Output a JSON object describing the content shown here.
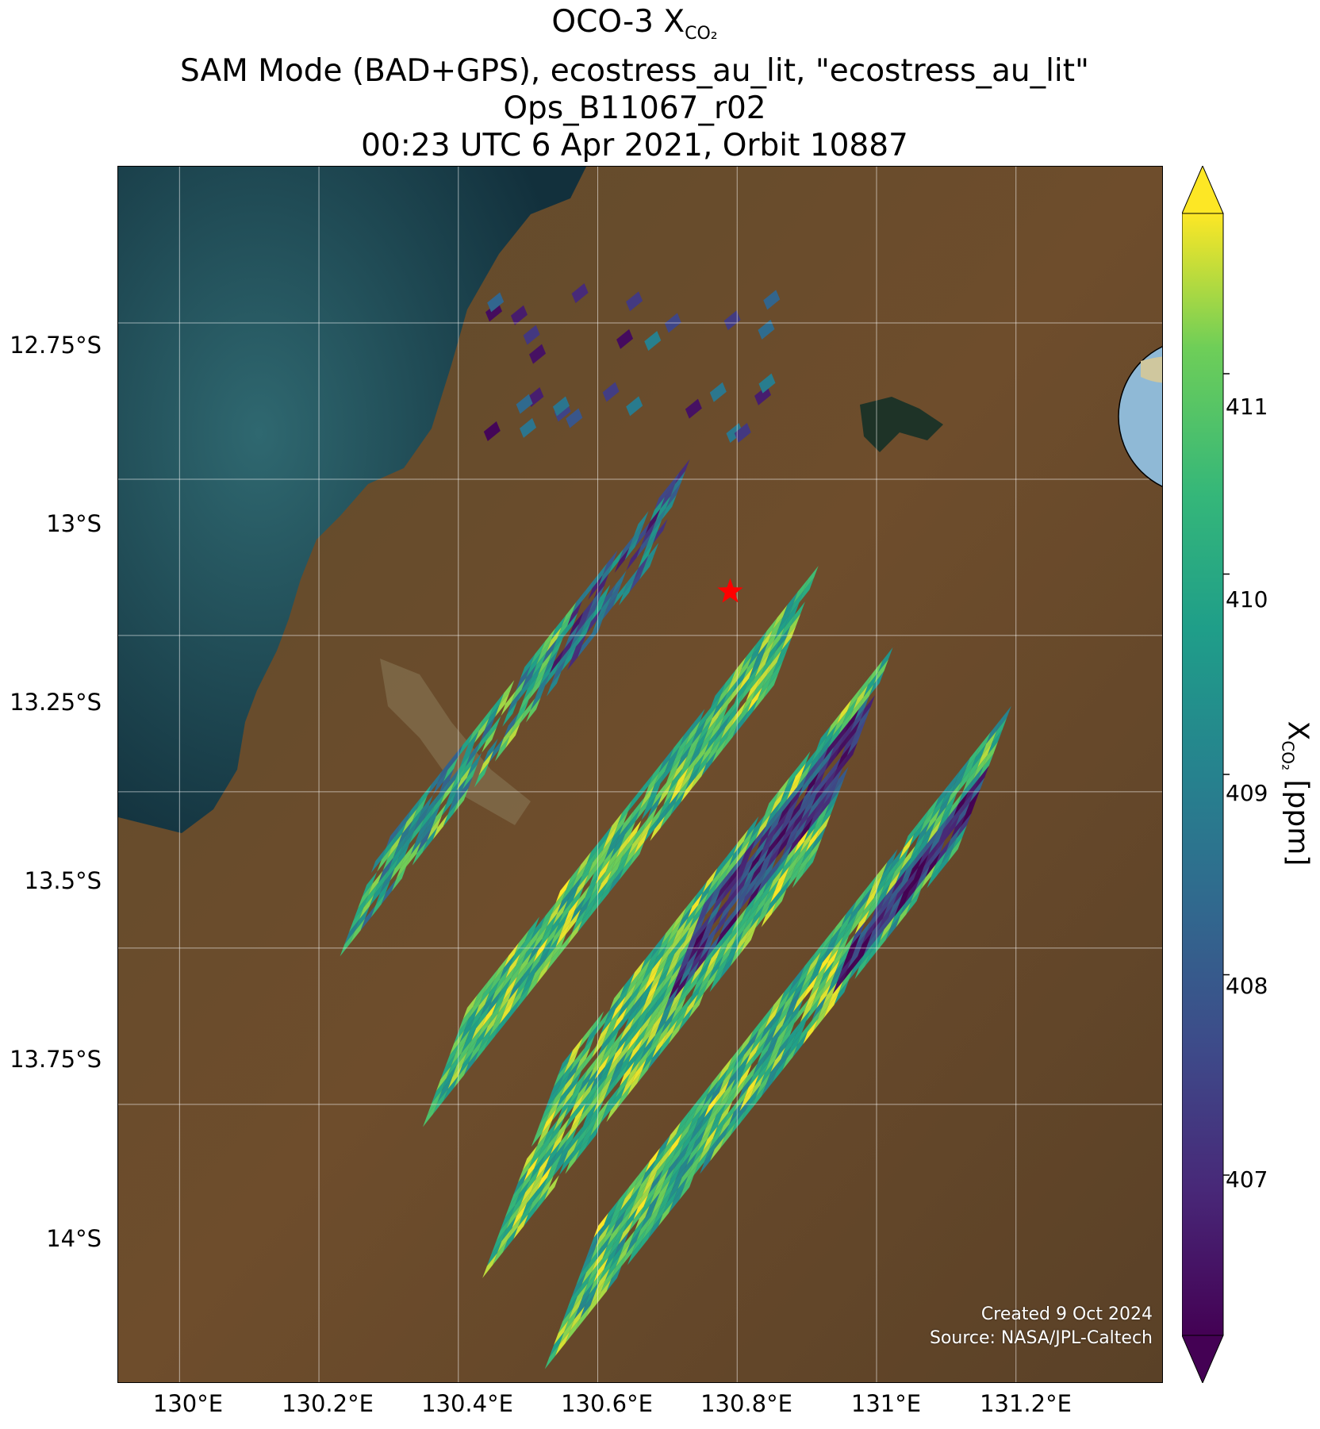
{
  "title": {
    "line1_prefix": "OCO-3 X",
    "line1_sub": "CO₂",
    "line2": "SAM Mode (BAD+GPS), ecostress_au_lit, \"ecostress_au_lit\"",
    "line3": "Ops_B11067_r02",
    "line4": "00:23 UTC 6 Apr 2021, Orbit 10887"
  },
  "axes": {
    "lat_ticks": [
      "12.75°S",
      "13°S",
      "13.25°S",
      "13.5°S",
      "13.75°S",
      "14°S"
    ],
    "lon_ticks": [
      "130°E",
      "130.2°E",
      "130.4°E",
      "130.6°E",
      "130.8°E",
      "131°E",
      "131.2°E"
    ]
  },
  "colorbar": {
    "label_prefix": "X",
    "label_sub": "CO₂",
    "label_suffix": " [ppm]",
    "ticks": [
      "407",
      "408",
      "409",
      "410",
      "411"
    ],
    "range": [
      406.2,
      411.8
    ],
    "colormap": "viridis"
  },
  "target": {
    "marker": "red-star",
    "lon": 130.79,
    "lat": -13.18
  },
  "footer": {
    "created": "Created 9 Oct 2024",
    "source": "Source: NASA/JPL-Caltech"
  },
  "colors": {
    "ocean": "#1d4450",
    "land": "#6b4b2a",
    "star": "#ff0000",
    "grid": "#ffffff"
  }
}
